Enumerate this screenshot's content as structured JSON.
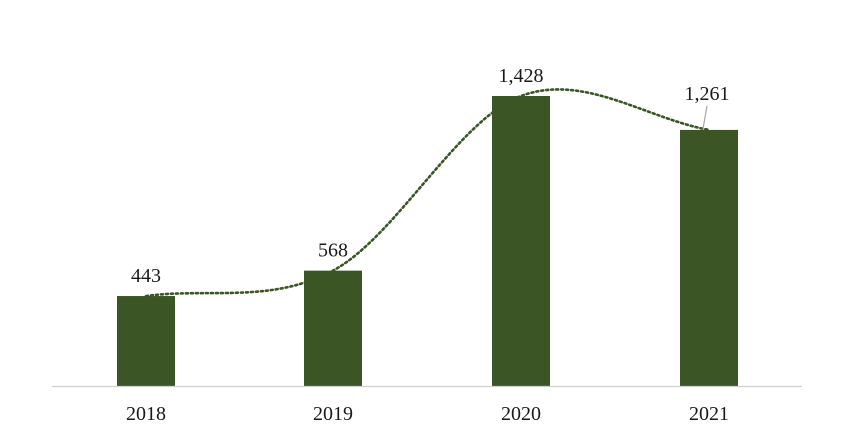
{
  "chart_data": {
    "type": "bar",
    "categories": [
      "2018",
      "2019",
      "2020",
      "2021"
    ],
    "values": [
      443,
      568,
      1428,
      1261
    ],
    "data_labels": [
      "443",
      "568",
      "1,428",
      "1,261"
    ],
    "title": "",
    "xlabel": "",
    "ylabel": "",
    "ylim": [
      0,
      1550
    ],
    "grid": false,
    "legend": "none",
    "trendline": "dotted smooth curve",
    "bar_color": "#3b5524",
    "trend_color": "#3b5524",
    "axis_color": "#d0d0d0"
  }
}
